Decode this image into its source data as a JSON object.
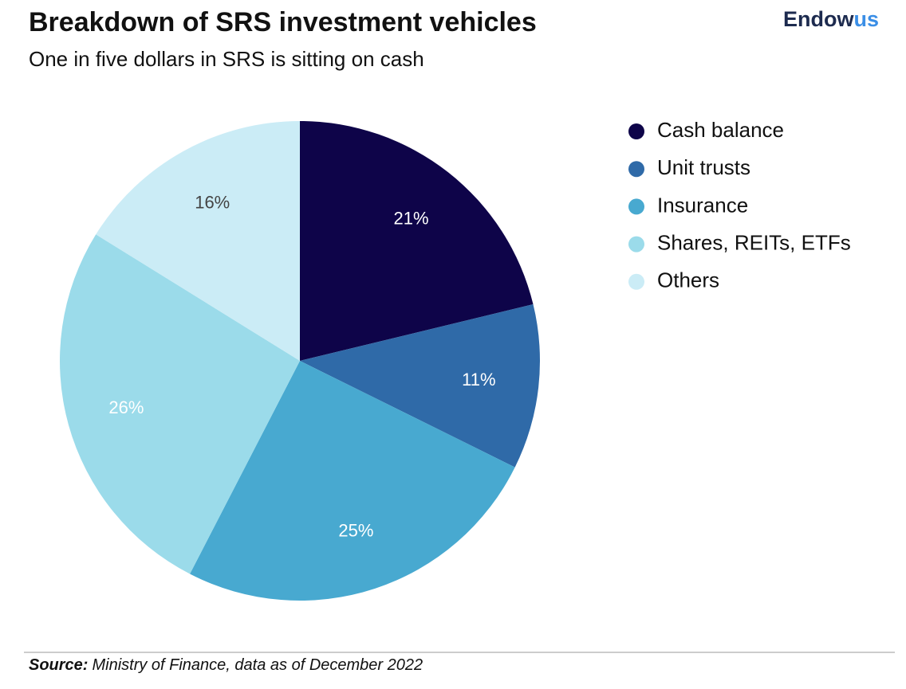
{
  "chart_data": {
    "type": "pie",
    "title": "Breakdown of SRS investment vehicles",
    "subtitle": "One in five dollars in SRS is sitting on cash",
    "categories": [
      "Cash balance",
      "Unit trusts",
      "Insurance",
      "Shares, REITs, ETFs",
      "Others"
    ],
    "values": [
      21,
      11,
      25,
      26,
      16
    ],
    "value_labels": [
      "21%",
      "11%",
      "25%",
      "26%",
      "16%"
    ],
    "colors": [
      "#0e0449",
      "#2f6aa8",
      "#48a9d0",
      "#9bdbea",
      "#cbecf6"
    ],
    "label_colors": [
      "#ffffff",
      "#ffffff",
      "#ffffff",
      "#ffffff",
      "#444444"
    ],
    "legend": "right"
  },
  "brand": {
    "main": "Endow",
    "accent": "us"
  },
  "source": {
    "label": "Source:",
    "text": "Ministry of Finance, data as of December 2022"
  }
}
